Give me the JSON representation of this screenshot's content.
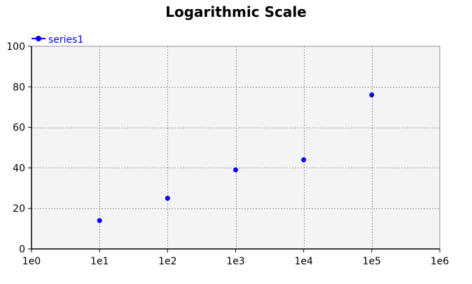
{
  "chart_data": {
    "type": "scatter",
    "title": "Logarithmic Scale",
    "xlabel": "",
    "ylabel": "",
    "x_scale": "log",
    "xlim": [
      1,
      1000000
    ],
    "ylim": [
      0,
      100
    ],
    "x_tick_values": [
      1,
      10,
      100,
      1000,
      10000,
      100000,
      1000000
    ],
    "x_tick_labels": [
      "1e0",
      "1e1",
      "1e2",
      "1e3",
      "1e4",
      "1e5",
      "1e6"
    ],
    "y_tick_values": [
      0,
      20,
      40,
      60,
      80,
      100
    ],
    "y_tick_labels": [
      "0",
      "20",
      "40",
      "60",
      "80",
      "100"
    ],
    "grid": true,
    "legend": "top-left",
    "series": [
      {
        "name": "series1",
        "color": "#0000ff",
        "x": [
          10,
          100,
          1000,
          10000,
          100000
        ],
        "y": [
          14,
          25,
          39,
          44,
          76
        ]
      }
    ],
    "plot_background": "#f4f4f6",
    "grid_color": "#9a9a9a"
  }
}
